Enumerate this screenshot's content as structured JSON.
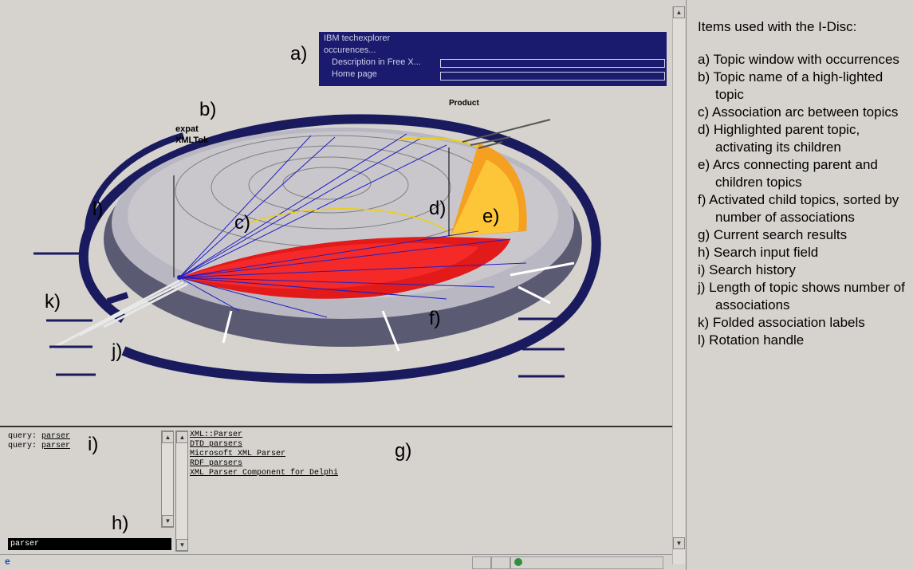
{
  "topic_window": {
    "title": "IBM techexplorer",
    "line2": "occurences...",
    "line3": "Description in Free X...",
    "line4": "Home page"
  },
  "labels": {
    "a": "a)",
    "b": "b)",
    "c": "c)",
    "d": "d)",
    "e": "e)",
    "f": "f)",
    "g": "g)",
    "h": "h)",
    "i": "i)",
    "j": "j)",
    "k": "k)",
    "l": "l)"
  },
  "topics": {
    "expat": "expat",
    "xmltok": "XMLTok",
    "product": "Product"
  },
  "history": [
    {
      "prefix": "query:",
      "term": "parser"
    },
    {
      "prefix": "query:",
      "term": "parser"
    }
  ],
  "results": [
    "XML::Parser",
    "DTD parsers",
    "Microsoft XML Parser",
    "RDF parsers",
    "XML Parser Component for Delphi"
  ],
  "search": {
    "value": "parser"
  },
  "legend": {
    "title": "Items used with the I-Disc:",
    "items": [
      "a)  Topic window with occurrences",
      "b)  Topic name of a high-lighted topic",
      "c)  Association arc between topics",
      "d)  Highlighted parent topic, activating its children",
      "e)  Arcs connecting parent and children topics",
      "f)  Activated child topics, sorted by number of associations",
      "g) Current search results",
      "h) Search input field",
      "i)  Search history",
      "j)  Length of topic shows number of associations",
      "k) Folded association labels",
      "l)  Rotation handle"
    ]
  },
  "colors": {
    "topic_window_bg": "#1a1a6e",
    "disc_ring": "#1a1a5e",
    "arc_blue": "#2020c0",
    "arc_red": "#e00000",
    "arc_yellow": "#f0d000",
    "search_bg": "#000000"
  }
}
